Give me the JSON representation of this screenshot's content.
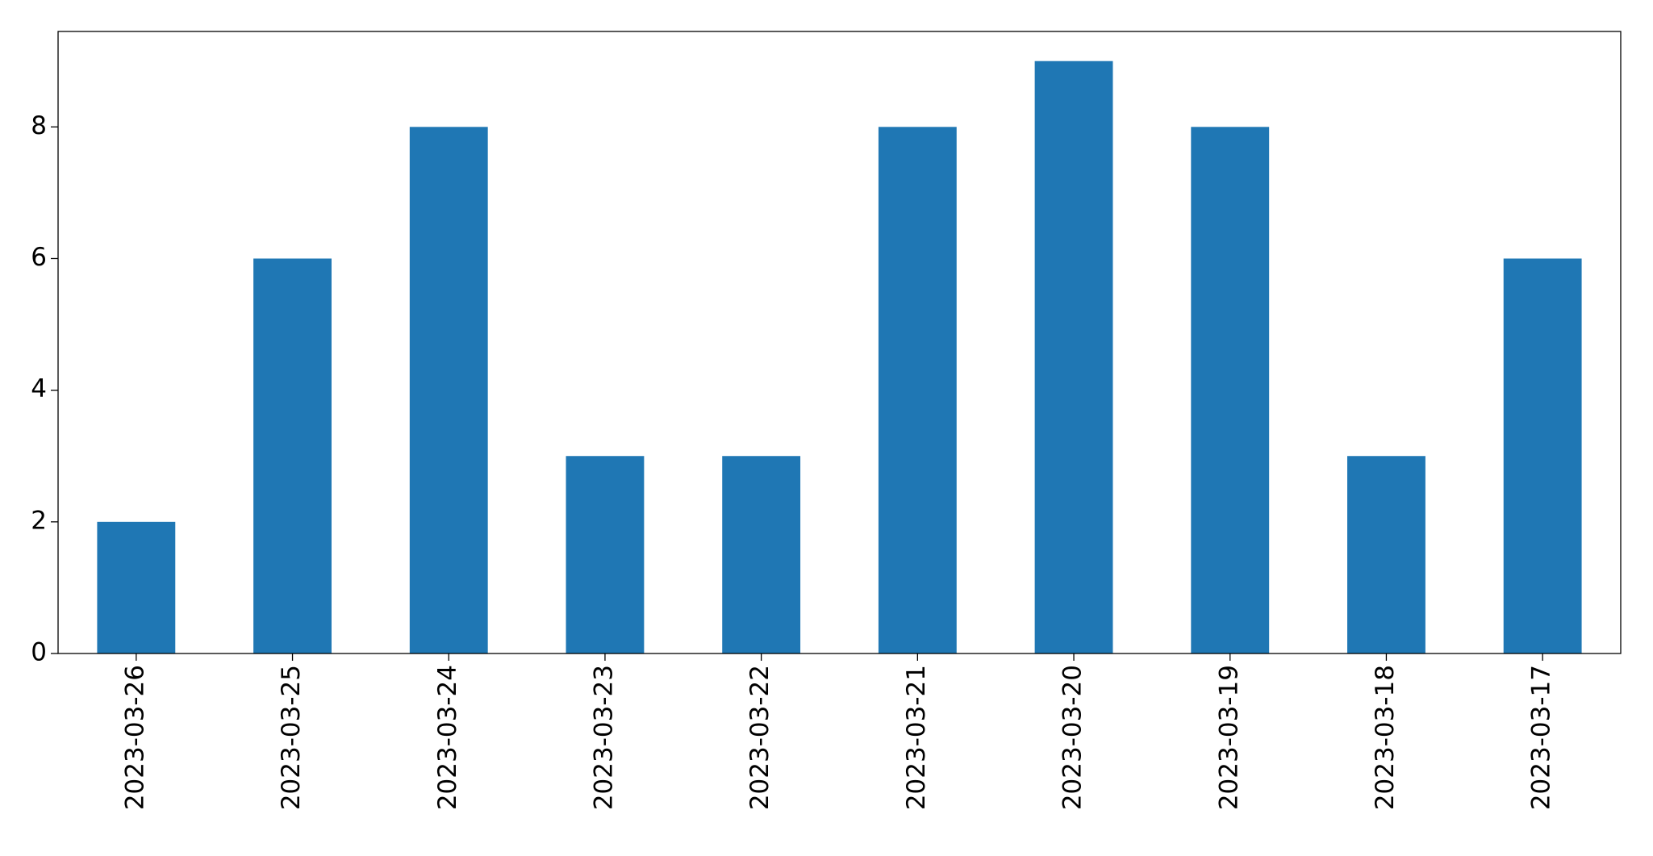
{
  "chart_data": {
    "type": "bar",
    "categories": [
      "2023-03-26",
      "2023-03-25",
      "2023-03-24",
      "2023-03-23",
      "2023-03-22",
      "2023-03-21",
      "2023-03-20",
      "2023-03-19",
      "2023-03-18",
      "2023-03-17"
    ],
    "values": [
      2,
      6,
      8,
      3,
      3,
      8,
      9,
      8,
      3,
      6
    ],
    "color": "#1f77b4",
    "ylim": [
      0,
      9.45
    ],
    "yticks": [
      0,
      2,
      4,
      6,
      8
    ],
    "grid": false
  }
}
